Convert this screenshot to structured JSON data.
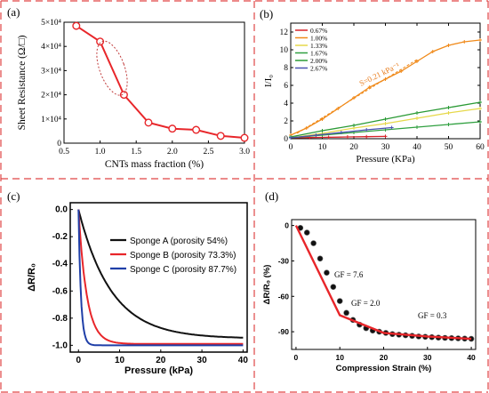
{
  "colors": {
    "divider": "#e04545"
  },
  "panels": [
    {
      "letter": "(a)",
      "chart_data": {
        "type": "line",
        "title": "",
        "xlabel": "CNTs mass fraction (%)",
        "ylabel": "Sheet Resistance (Ω/□)",
        "xlim": [
          0.5,
          3.0
        ],
        "ylim": [
          0,
          50000
        ],
        "xticks": [
          "0.5",
          "1.0",
          "1.5",
          "2.0",
          "2.5",
          "3.0"
        ],
        "yticks": [
          "0",
          "1×10⁴",
          "2×10⁴",
          "3×10⁴",
          "4×10⁴",
          "5×10⁴"
        ],
        "grid": false,
        "series": [
          {
            "color": "#e8262a",
            "marker": "circle",
            "x": [
              0.67,
              1.0,
              1.33,
              1.67,
              2.0,
              2.33,
              2.67,
              3.0
            ],
            "y": [
              48500,
              42000,
              20000,
              8500,
              6000,
              5500,
              3000,
              2200
            ]
          }
        ],
        "annotations": [
          {
            "kind": "dotted-ellipse",
            "around_x": [
              1.0,
              1.33
            ]
          }
        ]
      }
    },
    {
      "letter": "(b)",
      "chart_data": {
        "type": "line",
        "title": "",
        "xlabel": "Pressure (KPa)",
        "ylabel": "I/I₀",
        "xlim": [
          0,
          60
        ],
        "ylim": [
          0,
          13
        ],
        "xticks": [
          "0",
          "10",
          "20",
          "30",
          "40",
          "50",
          "60"
        ],
        "yticks": [
          "0",
          "2",
          "4",
          "6",
          "8",
          "10",
          "12"
        ],
        "grid": false,
        "legend_position": "top-left",
        "series": [
          {
            "name": "0.67%",
            "color": "#d8232a",
            "x": [
              0,
              6,
              12,
              18,
              24,
              30
            ],
            "y": [
              0.1,
              0.13,
              0.16,
              0.2,
              0.23,
              0.26
            ]
          },
          {
            "name": "1.00%",
            "color": "#f08a1a",
            "x": [
              0,
              5,
              10,
              15,
              20,
              25,
              30,
              35,
              40,
              45,
              50,
              55,
              60
            ],
            "y": [
              0.4,
              1.2,
              2.2,
              3.4,
              4.6,
              5.8,
              6.7,
              7.6,
              8.7,
              9.8,
              10.5,
              10.9,
              11.1
            ]
          },
          {
            "name": "1.33%",
            "color": "#e6d84a",
            "x": [
              0,
              10,
              20,
              30,
              40,
              50,
              60
            ],
            "y": [
              0.1,
              0.6,
              1.2,
              1.7,
              2.3,
              2.9,
              3.4
            ]
          },
          {
            "name": "1.67%",
            "color": "#30a040",
            "x": [
              0,
              10,
              20,
              30,
              40,
              50,
              60
            ],
            "y": [
              0.1,
              0.4,
              0.7,
              1.0,
              1.3,
              1.6,
              1.9
            ]
          },
          {
            "name": "2.00%",
            "color": "#2a9a35",
            "x": [
              0,
              10,
              20,
              30,
              40,
              50,
              60
            ],
            "y": [
              0.2,
              0.9,
              1.5,
              2.2,
              2.9,
              3.5,
              4.1
            ]
          },
          {
            "name": "2.67%",
            "color": "#4a52b0",
            "x": [
              0,
              8,
              16,
              24,
              32
            ],
            "y": [
              0.1,
              0.4,
              0.7,
              1.0,
              1.25
            ]
          }
        ],
        "annotations": [
          {
            "text": "S=0.21 kPa⁻¹",
            "color": "#e87d1e"
          }
        ]
      }
    },
    {
      "letter": "(c)",
      "chart_data": {
        "type": "line",
        "title": "",
        "xlabel": "Pressure (kPa)",
        "ylabel": "ΔR/R₀",
        "xlim": [
          -2,
          41
        ],
        "ylim": [
          -1.05,
          0.05
        ],
        "xticks": [
          "0",
          "10",
          "20",
          "30",
          "40"
        ],
        "yticks": [
          "0.0",
          "-0.2",
          "-0.4",
          "-0.6",
          "-0.8",
          "-1.0"
        ],
        "grid": false,
        "legend_position": "top-right",
        "series": [
          {
            "name": "Sponge  A (porosity 54%)",
            "color": "#111111",
            "tau": 8,
            "asymptote": -0.95
          },
          {
            "name": "Sponge  B (porosity 73.3%)",
            "color": "#e8262a",
            "tau": 2,
            "asymptote": -0.99
          },
          {
            "name": "Sponge  C (porosity 87.7%)",
            "color": "#1f3fa8",
            "tau": 0.6,
            "asymptote": -1.0
          }
        ]
      }
    },
    {
      "letter": "(d)",
      "chart_data": {
        "type": "scatter",
        "title": "",
        "xlabel": "Compression Strain (%)",
        "ylabel": "ΔR/R₀ (%)",
        "xlim": [
          -1,
          41
        ],
        "ylim": [
          -105,
          5
        ],
        "xticks": [
          "0",
          "10",
          "20",
          "30",
          "40"
        ],
        "yticks": [
          "0",
          "-30",
          "-60",
          "-90"
        ],
        "grid": false,
        "points": {
          "x": [
            1,
            2.5,
            4,
            5.5,
            7,
            8.5,
            10,
            11.5,
            13,
            14.5,
            16,
            17.5,
            19,
            20.5,
            22,
            23.5,
            25,
            26.5,
            28,
            29.5,
            31,
            32.5,
            34,
            35.5,
            37,
            38.5,
            40
          ],
          "y": [
            -2,
            -6,
            -15,
            -28,
            -40,
            -52,
            -64,
            -74,
            -80,
            -84,
            -87,
            -89,
            -90,
            -91,
            -92,
            -92.5,
            -93,
            -93.5,
            -94,
            -94.3,
            -94.6,
            -95,
            -95.2,
            -95.4,
            -95.6,
            -95.8,
            -96
          ]
        },
        "fit": {
          "x": [
            0,
            10,
            20,
            30,
            40
          ],
          "y": [
            0,
            -76,
            -91,
            -94,
            -96
          ],
          "color": "#e8262a"
        },
        "annotations": [
          {
            "text": "GF = 7.6"
          },
          {
            "text": "GF = 2.0"
          },
          {
            "text": "GF = 0.3"
          }
        ]
      }
    }
  ]
}
